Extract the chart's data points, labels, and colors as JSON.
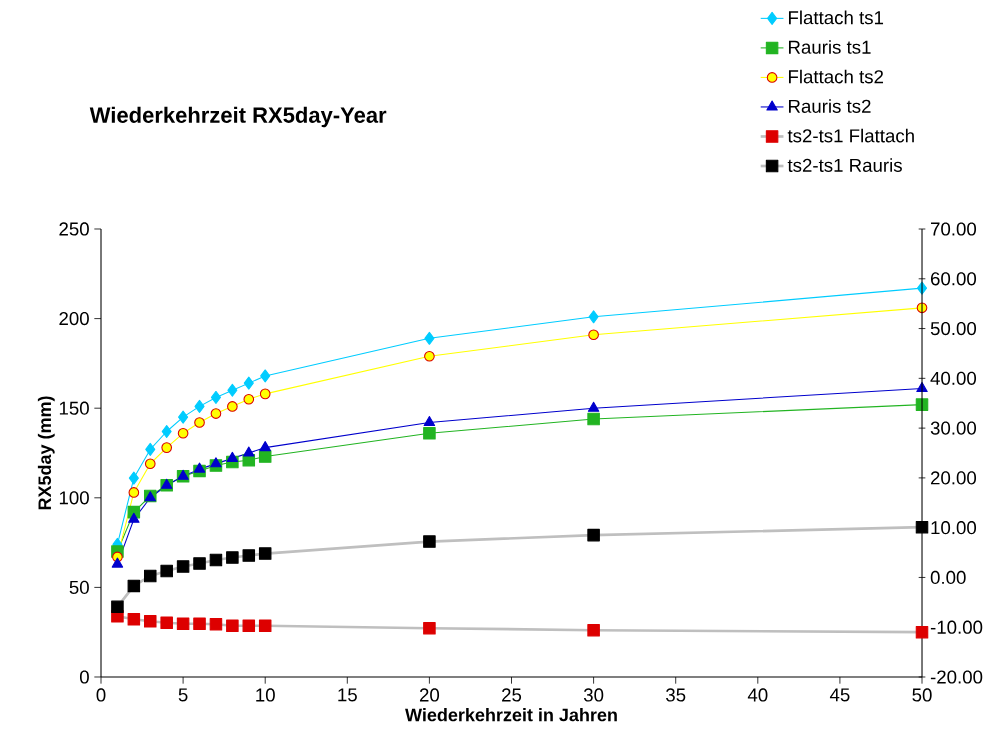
{
  "chart_data": {
    "type": "line",
    "title": "Wiederkehrzeit RX5day-Year",
    "xlabel": "Wiederkehrzeit in Jahren",
    "ylabel": "RX5day (mm)",
    "x": [
      1,
      2,
      3,
      4,
      5,
      6,
      7,
      8,
      9,
      10,
      20,
      30,
      50
    ],
    "series": [
      {
        "name": "Flattach ts1",
        "color": "#00ccff",
        "marker": "diamond",
        "values": [
          74,
          111,
          127,
          137,
          145,
          151,
          156,
          160,
          164,
          168,
          189,
          201,
          217
        ]
      },
      {
        "name": "Rauris ts1",
        "color": "#22b422",
        "marker": "square",
        "values": [
          70,
          92,
          101,
          107,
          112,
          115,
          118,
          120,
          121,
          123,
          136,
          144,
          152
        ]
      },
      {
        "name": "Flattach ts2",
        "color": "#ffff00",
        "marker": "circle",
        "values": [
          67,
          103,
          119,
          128,
          136,
          142,
          147,
          151,
          155,
          158,
          179,
          191,
          206
        ]
      },
      {
        "name": "Rauris ts2",
        "color": "#0000cc",
        "marker": "triangle",
        "values": [
          63,
          88,
          100,
          107,
          112,
          116,
          119,
          122,
          125,
          128,
          142,
          150,
          161
        ]
      },
      {
        "name": "ts2-ts1 Flattach",
        "color": "#dd0000",
        "marker": "square",
        "axis": "y2",
        "values": [
          -7.8,
          -8.4,
          -8.8,
          -9.1,
          -9.3,
          -9.3,
          -9.4,
          -9.7,
          -9.7,
          -9.7,
          -10.2,
          -10.6,
          -11
        ]
      },
      {
        "name": "ts2-ts1 Rauris",
        "color": "#000000",
        "marker": "square",
        "axis": "y2",
        "values": [
          -5.9,
          -1.7,
          0.3,
          1.3,
          2.2,
          2.8,
          3.5,
          4.0,
          4.4,
          4.8,
          7.2,
          8.5,
          10.1
        ]
      }
    ],
    "xlim": [
      0,
      50
    ],
    "xticks": [
      0,
      5,
      10,
      15,
      20,
      25,
      30,
      35,
      40,
      45,
      50
    ],
    "ylim": [
      0,
      250
    ],
    "yticks": [
      0,
      50,
      100,
      150,
      200,
      250
    ],
    "y2lim": [
      -20,
      70
    ],
    "y2ticks": [
      {
        "value": -20,
        "label": "-20.00"
      },
      {
        "value": -10,
        "label": "-10.00"
      },
      {
        "value": 0,
        "label": "0.00"
      },
      {
        "value": 10,
        "label": "10.00"
      },
      {
        "value": 20,
        "label": "20.00"
      },
      {
        "value": 30,
        "label": "30.00"
      },
      {
        "value": 40,
        "label": "40.00"
      },
      {
        "value": 50,
        "label": "50.00"
      },
      {
        "value": 60,
        "label": "60.00"
      },
      {
        "value": 70,
        "label": "70.00"
      }
    ],
    "grid": false,
    "legend": "top right"
  }
}
